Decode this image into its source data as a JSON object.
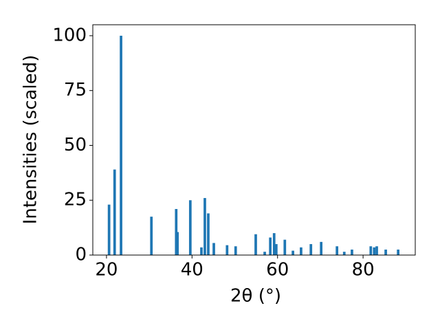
{
  "chart_data": {
    "type": "bar",
    "x_label": "2θ (°)",
    "y_label": "Intensities (scaled)",
    "x": [
      20.6,
      21.9,
      23.4,
      30.5,
      36.3,
      36.6,
      39.6,
      42.2,
      43.0,
      43.8,
      45.1,
      48.2,
      50.2,
      54.9,
      57.0,
      58.3,
      59.2,
      59.7,
      61.7,
      63.6,
      65.5,
      67.8,
      70.2,
      73.9,
      75.6,
      77.4,
      81.8,
      82.6,
      83.2,
      85.3,
      88.2
    ],
    "values": [
      23,
      39,
      100,
      17.5,
      21,
      10.5,
      25,
      3.5,
      26,
      19,
      5.5,
      4.5,
      4,
      9.5,
      1.5,
      8,
      10,
      5,
      7,
      2,
      3.5,
      5,
      6,
      4,
      1.5,
      2.5,
      4,
      3.5,
      4,
      2.5,
      2.5
    ],
    "bar_width": 0.6,
    "color": "#1f77b4",
    "xlim": [
      16.8,
      92.2
    ],
    "xticks": [
      20,
      40,
      60,
      80
    ],
    "ylim": [
      0,
      105
    ],
    "yticks": [
      0,
      25,
      50,
      75,
      100
    ]
  }
}
